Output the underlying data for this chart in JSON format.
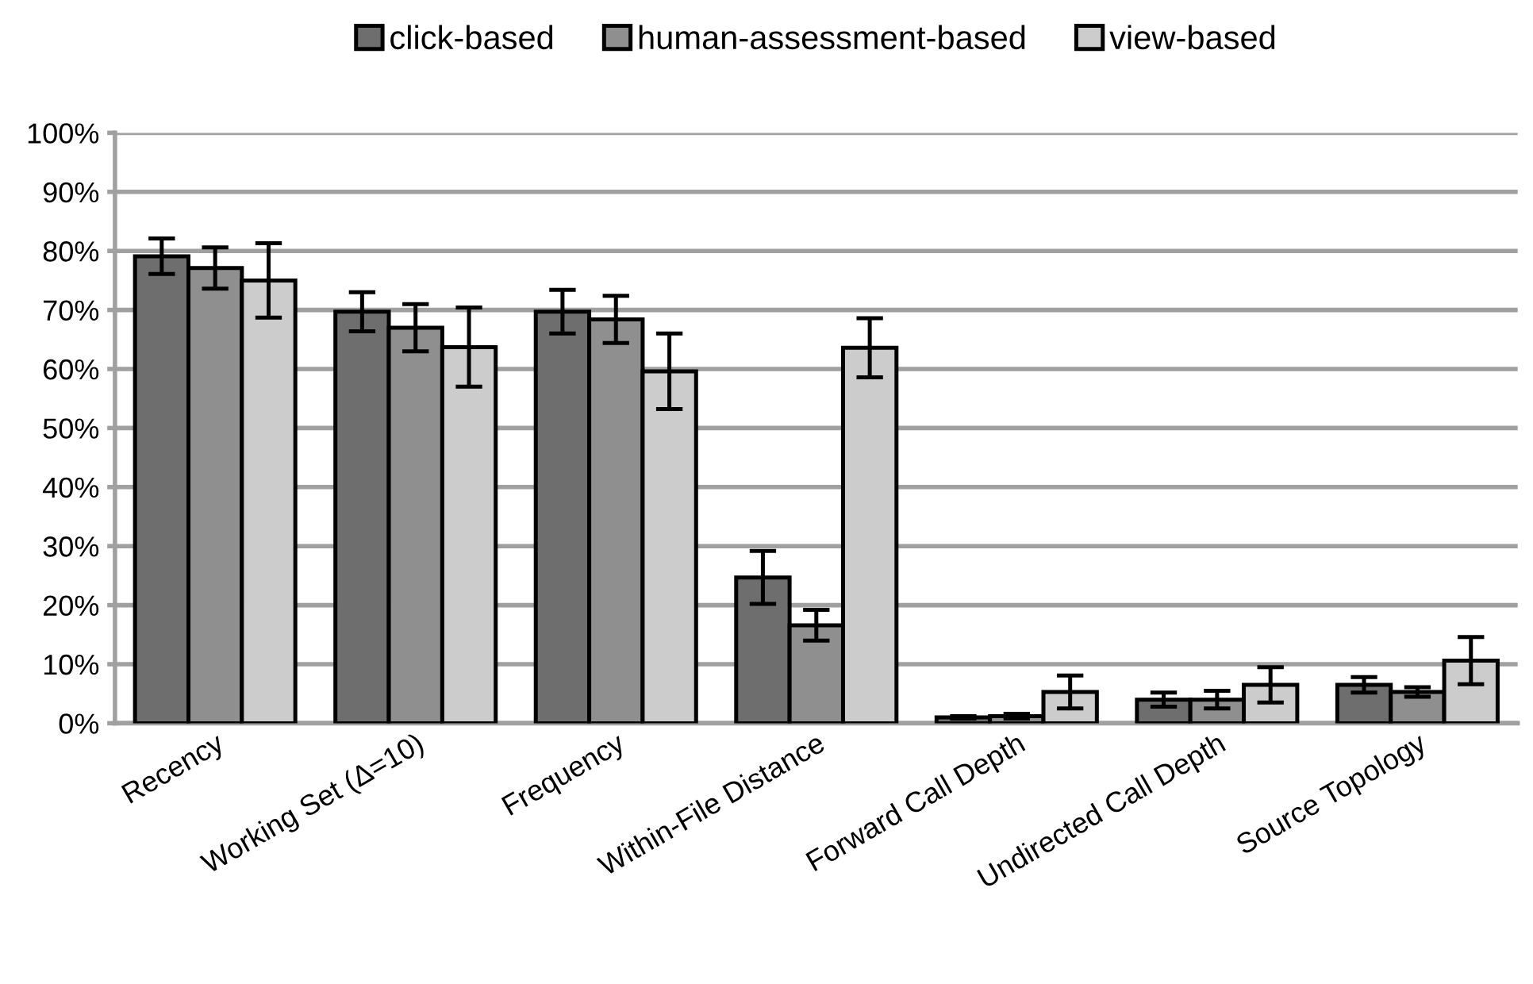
{
  "chart_data": {
    "type": "bar",
    "categories": [
      "Recency",
      "Working Set (Δ=10)",
      "Frequency",
      "Within-File Distance",
      "Forward Call Depth",
      "Undirected Call Depth",
      "Source Topology"
    ],
    "series": [
      {
        "name": "click-based",
        "color": "#6e6e6e",
        "values": [
          79.1,
          69.7,
          69.7,
          24.7,
          1.0,
          4.0,
          6.5
        ],
        "errors": [
          3,
          3.3,
          3.7,
          4.5,
          0.2,
          1.2,
          1.3
        ]
      },
      {
        "name": "human-assessment-based",
        "color": "#8f8f8f",
        "values": [
          77.1,
          67.0,
          68.4,
          16.6,
          1.2,
          4.0,
          5.3
        ],
        "errors": [
          3.5,
          4,
          4,
          2.6,
          0.4,
          1.5,
          0.8
        ]
      },
      {
        "name": "view-based",
        "color": "#cccccc",
        "values": [
          75.0,
          63.7,
          59.6,
          63.6,
          5.3,
          6.5,
          10.6
        ],
        "errors": [
          6.3,
          6.7,
          6.4,
          5,
          2.8,
          3,
          4
        ]
      }
    ],
    "ylim": [
      0,
      100
    ],
    "yticks": [
      {
        "value": 0,
        "label": "0%"
      },
      {
        "value": 10,
        "label": "10%"
      },
      {
        "value": 20,
        "label": "20%"
      },
      {
        "value": 30,
        "label": "30%"
      },
      {
        "value": 40,
        "label": "40%"
      },
      {
        "value": 50,
        "label": "50%"
      },
      {
        "value": 60,
        "label": "60%"
      },
      {
        "value": 70,
        "label": "70%"
      },
      {
        "value": 80,
        "label": "80%"
      },
      {
        "value": 90,
        "label": "90%"
      },
      {
        "value": 100,
        "label": "100%"
      }
    ],
    "grid": "y",
    "legend": "top"
  }
}
